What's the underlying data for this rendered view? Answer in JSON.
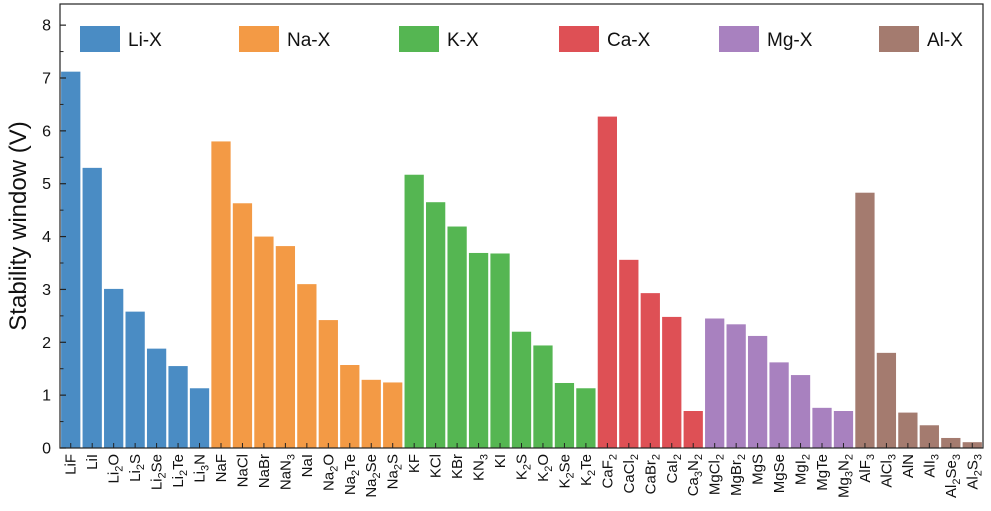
{
  "chart_data": {
    "type": "bar",
    "title": "",
    "xlabel": "",
    "ylabel": "Stability window (V)",
    "ylim": [
      0,
      8.4
    ],
    "yticks": [
      0,
      1,
      2,
      3,
      4,
      5,
      6,
      7,
      8
    ],
    "grid": false,
    "legend_position": "top",
    "colors": {
      "Li-X": "#4a8cc4",
      "Na-X": "#f39a45",
      "K-X": "#55b652",
      "Ca-X": "#de5055",
      "Mg-X": "#a881bf",
      "Al-X": "#a47b6f"
    },
    "legend": [
      "Li-X",
      "Na-X",
      "K-X",
      "Ca-X",
      "Mg-X",
      "Al-X"
    ],
    "bars": [
      {
        "label": [
          "LiF"
        ],
        "group": "Li-X",
        "value": 7.12
      },
      {
        "label": [
          "LiI"
        ],
        "group": "Li-X",
        "value": 5.3
      },
      {
        "label": [
          "Li",
          "2",
          "O"
        ],
        "group": "Li-X",
        "value": 3.01
      },
      {
        "label": [
          "Li",
          "2",
          "S"
        ],
        "group": "Li-X",
        "value": 2.58
      },
      {
        "label": [
          "Li",
          "2",
          "Se"
        ],
        "group": "Li-X",
        "value": 1.88
      },
      {
        "label": [
          "Li",
          "2",
          "Te"
        ],
        "group": "Li-X",
        "value": 1.55
      },
      {
        "label": [
          "Li",
          "3",
          "N"
        ],
        "group": "Li-X",
        "value": 1.13
      },
      {
        "label": [
          "NaF"
        ],
        "group": "Na-X",
        "value": 5.8
      },
      {
        "label": [
          "NaCl"
        ],
        "group": "Na-X",
        "value": 4.63
      },
      {
        "label": [
          "NaBr"
        ],
        "group": "Na-X",
        "value": 4.0
      },
      {
        "label": [
          "NaN",
          "3",
          ""
        ],
        "group": "Na-X",
        "value": 3.82
      },
      {
        "label": [
          "NaI"
        ],
        "group": "Na-X",
        "value": 3.1
      },
      {
        "label": [
          "Na",
          "2",
          "O"
        ],
        "group": "Na-X",
        "value": 2.42
      },
      {
        "label": [
          "Na",
          "2",
          "Te"
        ],
        "group": "Na-X",
        "value": 1.57
      },
      {
        "label": [
          "Na",
          "2",
          "Se"
        ],
        "group": "Na-X",
        "value": 1.29
      },
      {
        "label": [
          "Na",
          "2",
          "S"
        ],
        "group": "Na-X",
        "value": 1.24
      },
      {
        "label": [
          "KF"
        ],
        "group": "K-X",
        "value": 5.17
      },
      {
        "label": [
          "KCl"
        ],
        "group": "K-X",
        "value": 4.65
      },
      {
        "label": [
          "KBr"
        ],
        "group": "K-X",
        "value": 4.19
      },
      {
        "label": [
          "KN",
          "3",
          ""
        ],
        "group": "K-X",
        "value": 3.69
      },
      {
        "label": [
          "KI"
        ],
        "group": "K-X",
        "value": 3.68
      },
      {
        "label": [
          "K",
          "2",
          "S"
        ],
        "group": "K-X",
        "value": 2.2
      },
      {
        "label": [
          "K",
          "2",
          "O"
        ],
        "group": "K-X",
        "value": 1.94
      },
      {
        "label": [
          "K",
          "2",
          "Se"
        ],
        "group": "K-X",
        "value": 1.23
      },
      {
        "label": [
          "K",
          "2",
          "Te"
        ],
        "group": "K-X",
        "value": 1.13
      },
      {
        "label": [
          "CaF",
          "2",
          ""
        ],
        "group": "Ca-X",
        "value": 6.27
      },
      {
        "label": [
          "CaCl",
          "2",
          ""
        ],
        "group": "Ca-X",
        "value": 3.56
      },
      {
        "label": [
          "CaBr",
          "2",
          ""
        ],
        "group": "Ca-X",
        "value": 2.93
      },
      {
        "label": [
          "CaI",
          "2",
          ""
        ],
        "group": "Ca-X",
        "value": 2.48
      },
      {
        "label": [
          "Ca",
          "3",
          "N",
          "2",
          ""
        ],
        "group": "Ca-X",
        "value": 0.7
      },
      {
        "label": [
          "MgCl",
          "2",
          ""
        ],
        "group": "Mg-X",
        "value": 2.45
      },
      {
        "label": [
          "MgBr",
          "2",
          ""
        ],
        "group": "Mg-X",
        "value": 2.34
      },
      {
        "label": [
          "MgS"
        ],
        "group": "Mg-X",
        "value": 2.12
      },
      {
        "label": [
          "MgSe"
        ],
        "group": "Mg-X",
        "value": 1.62
      },
      {
        "label": [
          "MgI",
          "2",
          ""
        ],
        "group": "Mg-X",
        "value": 1.38
      },
      {
        "label": [
          "MgTe"
        ],
        "group": "Mg-X",
        "value": 0.76
      },
      {
        "label": [
          "Mg",
          "3",
          "N",
          "2",
          ""
        ],
        "group": "Mg-X",
        "value": 0.7
      },
      {
        "label": [
          "AlF",
          "3",
          ""
        ],
        "group": "Al-X",
        "value": 4.83
      },
      {
        "label": [
          "AlCl",
          "3",
          ""
        ],
        "group": "Al-X",
        "value": 1.8
      },
      {
        "label": [
          "AlN"
        ],
        "group": "Al-X",
        "value": 0.67
      },
      {
        "label": [
          "AlI",
          "3",
          ""
        ],
        "group": "Al-X",
        "value": 0.43
      },
      {
        "label": [
          "Al",
          "2",
          "Se",
          "3",
          ""
        ],
        "group": "Al-X",
        "value": 0.19
      },
      {
        "label": [
          "Al",
          "2",
          "S",
          "3",
          ""
        ],
        "group": "Al-X",
        "value": 0.11
      }
    ]
  }
}
